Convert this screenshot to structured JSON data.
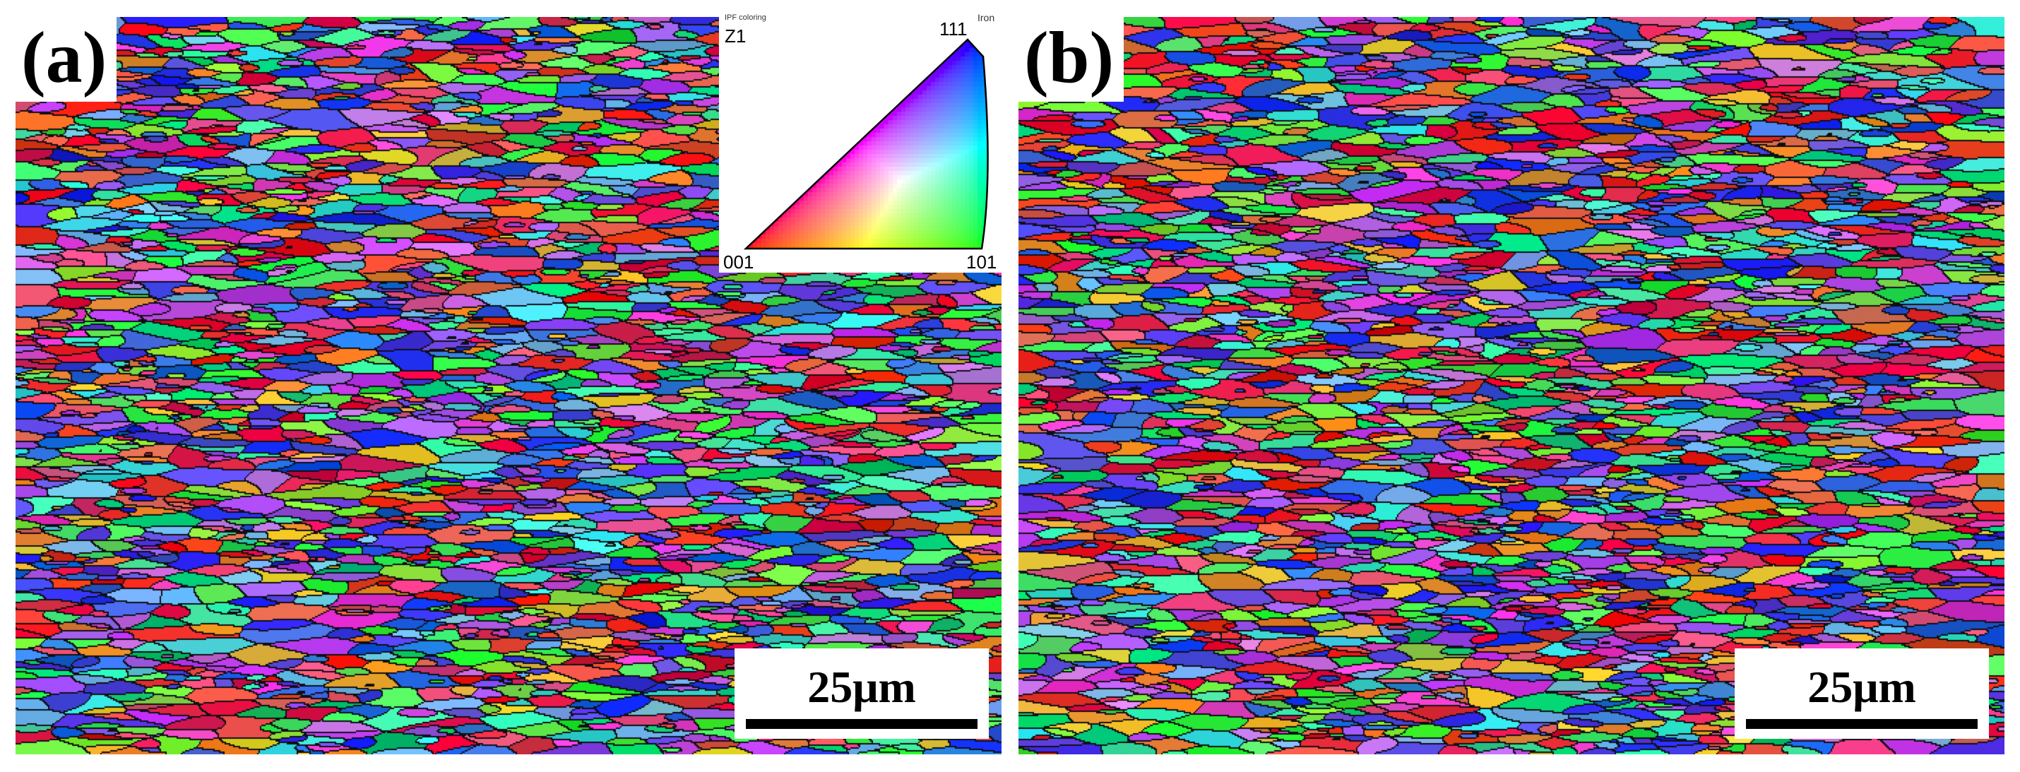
{
  "panels": [
    {
      "label": "(a)",
      "scale_bar": "25μm"
    },
    {
      "label": "(b)",
      "scale_bar": "25μm"
    }
  ],
  "ipf_legend": {
    "heading": "IPF coloring",
    "material": "Iron",
    "direction": "Z1",
    "corners": {
      "top": "111",
      "bottom_left": "001",
      "bottom_right": "101"
    }
  },
  "colors": {
    "red": "#ff0000",
    "green": "#00ff00",
    "blue": "#0000ff",
    "boundary": "#000000"
  }
}
